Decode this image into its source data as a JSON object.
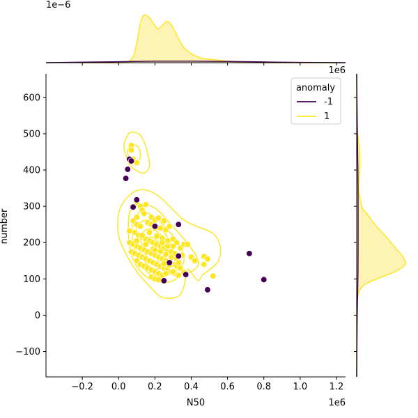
{
  "chart_data": {
    "type": "scatter",
    "xlabel": "N50",
    "ylabel": "number",
    "x_offset_text": "1e6",
    "y_offset_text": "",
    "top_marginal_offset_text": "1e−6",
    "right_marginal_offset_text": "1e6",
    "xlim": [
      -0.4,
      1.25
    ],
    "ylim": [
      -170,
      665
    ],
    "x_ticks": [
      -0.2,
      0.0,
      0.2,
      0.4,
      0.6,
      0.8,
      1.0,
      1.2
    ],
    "x_tick_labels": [
      "−0.2",
      "0.0",
      "0.2",
      "0.4",
      "0.6",
      "0.8",
      "1.0",
      "1.2"
    ],
    "y_ticks": [
      -100,
      0,
      100,
      200,
      300,
      400,
      500,
      600
    ],
    "y_tick_labels": [
      "−100",
      "0",
      "100",
      "200",
      "300",
      "400",
      "500",
      "600"
    ],
    "grid": false,
    "legend": {
      "title": "anomaly",
      "placement": "top-right",
      "entries": [
        {
          "label": "-1",
          "color": "#440154"
        },
        {
          "label": "1",
          "color": "#fde725"
        }
      ]
    },
    "colors": {
      "anomaly": "#440154",
      "normal": "#fde725",
      "fill": "#fdf3b5"
    },
    "series": [
      {
        "name": "1",
        "color": "#fde725",
        "points": [
          [
            0.07,
            468
          ],
          [
            0.07,
            455
          ],
          [
            0.08,
            430
          ],
          [
            0.1,
            420
          ],
          [
            0.1,
            312
          ],
          [
            0.12,
            300
          ],
          [
            0.13,
            290
          ],
          [
            0.15,
            305
          ],
          [
            0.14,
            280
          ],
          [
            0.1,
            270
          ],
          [
            0.18,
            270
          ],
          [
            0.2,
            262
          ],
          [
            0.22,
            268
          ],
          [
            0.25,
            260
          ],
          [
            0.08,
            260
          ],
          [
            0.1,
            250
          ],
          [
            0.12,
            245
          ],
          [
            0.16,
            255
          ],
          [
            0.18,
            250
          ],
          [
            0.2,
            240
          ],
          [
            0.23,
            240
          ],
          [
            0.26,
            235
          ],
          [
            0.28,
            245
          ],
          [
            0.3,
            210
          ],
          [
            0.32,
            200
          ],
          [
            0.3,
            190
          ],
          [
            0.34,
            185
          ],
          [
            0.36,
            195
          ],
          [
            0.38,
            195
          ],
          [
            0.06,
            232
          ],
          [
            0.09,
            228
          ],
          [
            0.11,
            220
          ],
          [
            0.13,
            215
          ],
          [
            0.15,
            210
          ],
          [
            0.17,
            205
          ],
          [
            0.19,
            200
          ],
          [
            0.21,
            195
          ],
          [
            0.23,
            190
          ],
          [
            0.25,
            185
          ],
          [
            0.27,
            180
          ],
          [
            0.29,
            175
          ],
          [
            0.31,
            170
          ],
          [
            0.06,
            200
          ],
          [
            0.08,
            195
          ],
          [
            0.1,
            190
          ],
          [
            0.12,
            185
          ],
          [
            0.14,
            180
          ],
          [
            0.16,
            175
          ],
          [
            0.18,
            170
          ],
          [
            0.2,
            165
          ],
          [
            0.22,
            160
          ],
          [
            0.24,
            155
          ],
          [
            0.26,
            150
          ],
          [
            0.28,
            145
          ],
          [
            0.3,
            140
          ],
          [
            0.32,
            135
          ],
          [
            0.34,
            130
          ],
          [
            0.07,
            175
          ],
          [
            0.09,
            170
          ],
          [
            0.11,
            165
          ],
          [
            0.13,
            160
          ],
          [
            0.15,
            155
          ],
          [
            0.17,
            150
          ],
          [
            0.19,
            145
          ],
          [
            0.21,
            140
          ],
          [
            0.23,
            135
          ],
          [
            0.25,
            130
          ],
          [
            0.27,
            125
          ],
          [
            0.29,
            120
          ],
          [
            0.31,
            115
          ],
          [
            0.33,
            110
          ],
          [
            0.1,
            150
          ],
          [
            0.12,
            140
          ],
          [
            0.14,
            135
          ],
          [
            0.16,
            130
          ],
          [
            0.18,
            125
          ],
          [
            0.2,
            120
          ],
          [
            0.22,
            115
          ],
          [
            0.24,
            110
          ],
          [
            0.18,
            105
          ],
          [
            0.2,
            100
          ],
          [
            0.22,
            98
          ],
          [
            0.13,
            220
          ],
          [
            0.17,
            228
          ],
          [
            0.21,
            218
          ],
          [
            0.24,
            212
          ],
          [
            0.27,
            205
          ],
          [
            0.19,
            183
          ],
          [
            0.23,
            176
          ],
          [
            0.26,
            168
          ],
          [
            0.29,
            160
          ],
          [
            0.32,
            155
          ],
          [
            0.25,
            142
          ],
          [
            0.28,
            138
          ],
          [
            0.33,
            145
          ],
          [
            0.35,
            165
          ],
          [
            0.4,
            160
          ],
          [
            0.42,
            150
          ],
          [
            0.47,
            162
          ],
          [
            0.49,
            155
          ],
          [
            0.52,
            108
          ],
          [
            0.47,
            140
          ],
          [
            0.36,
            118
          ],
          [
            0.3,
            120
          ],
          [
            0.26,
            115
          ],
          [
            0.15,
            195
          ],
          [
            0.2,
            180
          ],
          [
            0.27,
            190
          ],
          [
            0.1,
            205
          ],
          [
            0.24,
            200
          ]
        ]
      },
      {
        "name": "-1",
        "color": "#440154",
        "points": [
          [
            0.06,
            430
          ],
          [
            0.07,
            425
          ],
          [
            0.05,
            402
          ],
          [
            0.04,
            377
          ],
          [
            0.1,
            318
          ],
          [
            0.08,
            298
          ],
          [
            0.2,
            245
          ],
          [
            0.33,
            250
          ],
          [
            0.28,
            145
          ],
          [
            0.25,
            95
          ],
          [
            0.37,
            112
          ],
          [
            0.49,
            70
          ],
          [
            0.72,
            170
          ],
          [
            0.8,
            98
          ],
          [
            0.33,
            163
          ]
        ]
      }
    ],
    "contour_levels_normal": [
      [
        [
          0.03,
          470
        ],
        [
          0.06,
          502
        ],
        [
          0.11,
          500
        ],
        [
          0.14,
          478
        ],
        [
          0.16,
          445
        ],
        [
          0.17,
          410
        ],
        [
          0.14,
          392
        ],
        [
          0.1,
          398
        ],
        [
          0.06,
          415
        ],
        [
          0.04,
          440
        ]
      ],
      [
        [
          0.05,
          455
        ],
        [
          0.08,
          470
        ],
        [
          0.11,
          462
        ],
        [
          0.12,
          440
        ],
        [
          0.11,
          425
        ],
        [
          0.08,
          422
        ],
        [
          0.06,
          432
        ]
      ],
      [
        [
          0.0,
          280
        ],
        [
          0.04,
          320
        ],
        [
          0.11,
          345
        ],
        [
          0.18,
          340
        ],
        [
          0.24,
          320
        ],
        [
          0.3,
          290
        ],
        [
          0.36,
          262
        ],
        [
          0.43,
          245
        ],
        [
          0.52,
          225
        ],
        [
          0.56,
          190
        ],
        [
          0.55,
          150
        ],
        [
          0.5,
          125
        ],
        [
          0.46,
          110
        ],
        [
          0.44,
          95
        ],
        [
          0.41,
          110
        ],
        [
          0.38,
          125
        ],
        [
          0.36,
          80
        ],
        [
          0.33,
          52
        ],
        [
          0.26,
          47
        ],
        [
          0.22,
          55
        ],
        [
          0.17,
          80
        ],
        [
          0.1,
          120
        ],
        [
          0.04,
          170
        ],
        [
          0.0,
          220
        ]
      ],
      [
        [
          0.06,
          280
        ],
        [
          0.12,
          305
        ],
        [
          0.2,
          295
        ],
        [
          0.28,
          255
        ],
        [
          0.36,
          210
        ],
        [
          0.42,
          170
        ],
        [
          0.44,
          140
        ],
        [
          0.4,
          120
        ],
        [
          0.34,
          110
        ],
        [
          0.3,
          95
        ],
        [
          0.24,
          90
        ],
        [
          0.17,
          100
        ],
        [
          0.1,
          135
        ],
        [
          0.06,
          190
        ]
      ],
      [
        [
          0.08,
          260
        ],
        [
          0.13,
          285
        ],
        [
          0.2,
          270
        ],
        [
          0.28,
          230
        ],
        [
          0.34,
          190
        ],
        [
          0.36,
          150
        ],
        [
          0.32,
          125
        ],
        [
          0.25,
          108
        ],
        [
          0.17,
          115
        ],
        [
          0.11,
          150
        ],
        [
          0.08,
          200
        ]
      ],
      [
        [
          0.1,
          240
        ],
        [
          0.15,
          262
        ],
        [
          0.22,
          245
        ],
        [
          0.28,
          205
        ],
        [
          0.3,
          165
        ],
        [
          0.26,
          135
        ],
        [
          0.2,
          128
        ],
        [
          0.14,
          150
        ],
        [
          0.11,
          195
        ]
      ],
      [
        [
          0.12,
          220
        ],
        [
          0.17,
          238
        ],
        [
          0.23,
          222
        ],
        [
          0.26,
          190
        ],
        [
          0.25,
          160
        ],
        [
          0.2,
          148
        ],
        [
          0.15,
          165
        ],
        [
          0.13,
          195
        ]
      ],
      [
        [
          0.14,
          205
        ],
        [
          0.18,
          215
        ],
        [
          0.22,
          200
        ],
        [
          0.22,
          178
        ],
        [
          0.18,
          168
        ],
        [
          0.15,
          180
        ]
      ]
    ],
    "marginal_x_density_normal": {
      "x": [
        -0.2,
        0.0,
        0.02,
        0.05,
        0.08,
        0.1,
        0.12,
        0.14,
        0.17,
        0.2,
        0.22,
        0.25,
        0.27,
        0.3,
        0.33,
        0.36,
        0.4,
        0.45,
        0.5,
        0.55,
        0.6,
        0.7,
        0.8,
        1.2
      ],
      "y": [
        0.0,
        0.0,
        0.0,
        0.02,
        0.12,
        0.4,
        0.78,
        0.95,
        0.9,
        0.74,
        0.68,
        0.78,
        0.82,
        0.7,
        0.48,
        0.3,
        0.18,
        0.1,
        0.07,
        0.05,
        0.03,
        0.01,
        0.0,
        0.0
      ]
    },
    "marginal_x_density_anomaly": {
      "x": [
        -0.4,
        0.0,
        0.2,
        0.4,
        0.6,
        0.8,
        1.0,
        1.25
      ],
      "y": [
        0.0,
        0.02,
        0.03,
        0.03,
        0.025,
        0.015,
        0.005,
        0.0
      ]
    },
    "marginal_y_density_normal": {
      "y": [
        -170,
        0,
        50,
        80,
        100,
        120,
        140,
        160,
        180,
        200,
        220,
        250,
        280,
        300,
        350,
        400,
        450,
        500,
        550,
        665
      ],
      "d": [
        0.0,
        0.0,
        0.01,
        0.06,
        0.2,
        0.38,
        0.48,
        0.46,
        0.4,
        0.34,
        0.28,
        0.18,
        0.1,
        0.05,
        0.02,
        0.03,
        0.03,
        0.01,
        0.0,
        0.0
      ]
    },
    "marginal_y_density_anomaly": {
      "y": [
        -170,
        0,
        100,
        200,
        300,
        400,
        500,
        665
      ],
      "d": [
        0.0,
        0.005,
        0.012,
        0.014,
        0.014,
        0.012,
        0.006,
        0.0
      ]
    }
  }
}
